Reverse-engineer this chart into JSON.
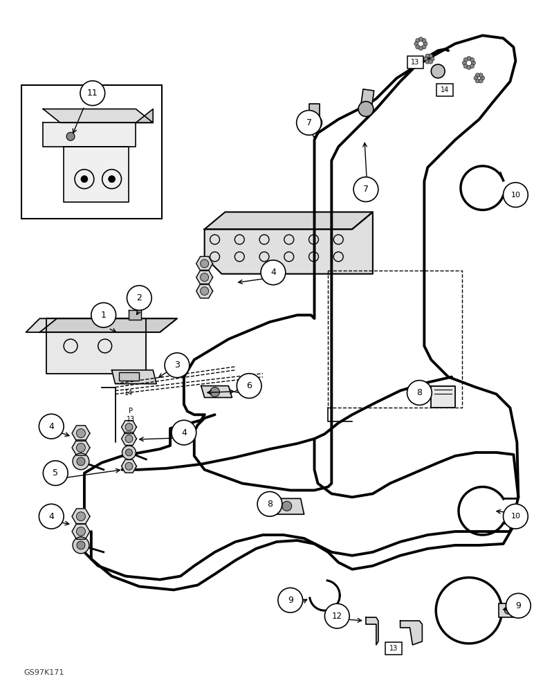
{
  "background_color": "#ffffff",
  "line_color": "#000000",
  "figure_width": 7.72,
  "figure_height": 10.0,
  "dpi": 100,
  "watermark": "GS97K171"
}
